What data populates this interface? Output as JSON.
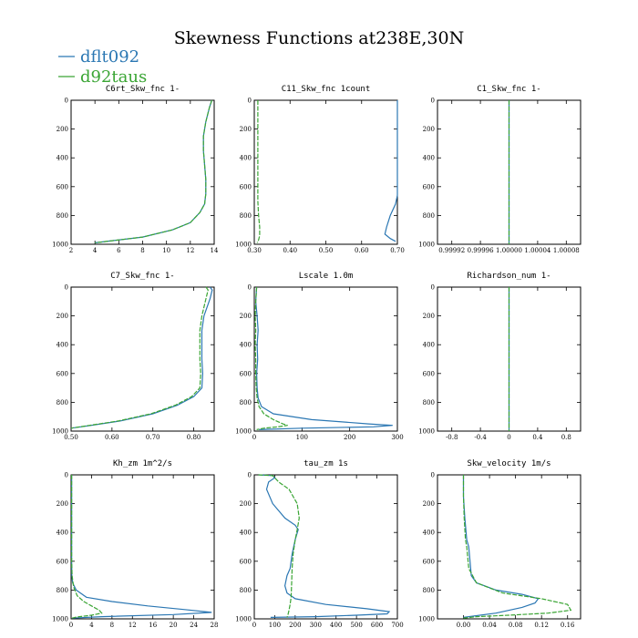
{
  "figure_title": "Skewness Functions at238E,30N",
  "legend": [
    {
      "label": "dflt092",
      "color": "#2b77b3"
    },
    {
      "label": "d92taus",
      "color": "#3aa534"
    }
  ],
  "chart_data": [
    {
      "type": "line",
      "title": "C6rt_Skw_fnc  1-",
      "xlim": [
        2,
        14
      ],
      "ylim": [
        0,
        1000
      ],
      "y_inverted": true,
      "xticks": [
        "2",
        "4",
        "6",
        "8",
        "10",
        "12",
        "14"
      ],
      "yticks": [
        "0",
        "200",
        "400",
        "600",
        "800",
        "1000"
      ],
      "series": [
        {
          "name": "dflt092",
          "x": [
            13.8,
            13.6,
            13.3,
            13.1,
            13.1,
            13.2,
            13.3,
            13.3,
            13.2,
            12.8,
            12.0,
            10.5,
            8.0,
            4.0
          ],
          "y": [
            0,
            50,
            150,
            250,
            350,
            450,
            550,
            650,
            720,
            780,
            850,
            900,
            950,
            990
          ]
        },
        {
          "name": "d92taus",
          "x": [
            13.8,
            13.6,
            13.3,
            13.1,
            13.1,
            13.2,
            13.3,
            13.3,
            13.2,
            12.8,
            12.0,
            10.5,
            8.0,
            4.0
          ],
          "y": [
            0,
            50,
            150,
            250,
            350,
            450,
            550,
            650,
            720,
            780,
            850,
            900,
            950,
            990
          ]
        }
      ]
    },
    {
      "type": "line",
      "title": "C11_Skw_fnc   1count",
      "xlim": [
        0.3,
        0.7
      ],
      "ylim": [
        0,
        1000
      ],
      "y_inverted": true,
      "xticks": [
        "0.30",
        "0.40",
        "0.50",
        "0.60",
        "0.70"
      ],
      "yticks": [
        "0",
        "200",
        "400",
        "600",
        "800",
        "1000"
      ],
      "series": [
        {
          "name": "dflt092",
          "x": [
            0.7,
            0.7,
            0.7,
            0.7,
            0.7,
            0.7,
            0.695,
            0.68,
            0.67,
            0.665,
            0.68,
            0.695
          ],
          "y": [
            0,
            150,
            300,
            450,
            600,
            660,
            720,
            800,
            880,
            930,
            960,
            980
          ]
        },
        {
          "name": "d92taus",
          "x": [
            0.31,
            0.31,
            0.31,
            0.31,
            0.31,
            0.31,
            0.312,
            0.315,
            0.315,
            0.312,
            0.308
          ],
          "y": [
            0,
            150,
            300,
            450,
            600,
            700,
            800,
            880,
            940,
            970,
            990
          ]
        }
      ]
    },
    {
      "type": "line",
      "title": "C1_Skw_fnc   1-",
      "xlim": [
        0.9999,
        1.0001
      ],
      "ylim": [
        0,
        1000
      ],
      "y_inverted": true,
      "xticks": [
        "0.99992",
        "0.99996",
        "1.00000",
        "1.00004",
        "1.00008"
      ],
      "yticks": [
        "0",
        "200",
        "400",
        "600",
        "800",
        "1000"
      ],
      "series": [
        {
          "name": "dflt092",
          "x": [
            1.0,
            1.0
          ],
          "y": [
            0,
            1000
          ]
        },
        {
          "name": "d92taus",
          "x": [
            1.0,
            1.0
          ],
          "y": [
            0,
            1000
          ]
        }
      ]
    },
    {
      "type": "line",
      "title": "C7_Skw_fnc   1-",
      "xlim": [
        0.5,
        0.85
      ],
      "ylim": [
        0,
        1000
      ],
      "y_inverted": true,
      "xticks": [
        "0.50",
        "0.60",
        "0.70",
        "0.80"
      ],
      "yticks": [
        "0",
        "200",
        "400",
        "600",
        "800",
        "1000"
      ],
      "series": [
        {
          "name": "dflt092",
          "x": [
            0.84,
            0.845,
            0.84,
            0.825,
            0.82,
            0.82,
            0.82,
            0.822,
            0.82,
            0.8,
            0.76,
            0.7,
            0.62,
            0.55,
            0.5
          ],
          "y": [
            0,
            20,
            80,
            200,
            300,
            400,
            500,
            600,
            700,
            760,
            820,
            880,
            930,
            960,
            980
          ]
        },
        {
          "name": "d92taus",
          "x": [
            0.83,
            0.835,
            0.83,
            0.82,
            0.815,
            0.815,
            0.815,
            0.817,
            0.815,
            0.795,
            0.755,
            0.695,
            0.615,
            0.545,
            0.5
          ],
          "y": [
            0,
            20,
            80,
            200,
            300,
            400,
            500,
            600,
            700,
            760,
            820,
            880,
            930,
            960,
            980
          ]
        }
      ]
    },
    {
      "type": "line",
      "title": "Lscale   1.0m",
      "xlim": [
        0,
        300
      ],
      "ylim": [
        0,
        1000
      ],
      "y_inverted": true,
      "xticks": [
        "0",
        "100",
        "200",
        "300"
      ],
      "yticks": [
        "0",
        "200",
        "400",
        "600",
        "800",
        "1000"
      ],
      "series": [
        {
          "name": "dflt092",
          "x": [
            5,
            3,
            6,
            8,
            6,
            7,
            5,
            6,
            8,
            15,
            40,
            120,
            240,
            290,
            250,
            100,
            10
          ],
          "y": [
            0,
            100,
            200,
            300,
            400,
            500,
            600,
            700,
            770,
            830,
            880,
            920,
            950,
            960,
            970,
            980,
            990
          ]
        },
        {
          "name": "d92taus",
          "x": [
            5,
            3,
            2,
            3,
            2,
            3,
            3,
            4,
            6,
            10,
            20,
            40,
            60,
            70,
            50,
            20,
            5
          ],
          "y": [
            0,
            100,
            200,
            300,
            400,
            500,
            600,
            700,
            770,
            830,
            880,
            920,
            950,
            960,
            970,
            980,
            990
          ]
        }
      ]
    },
    {
      "type": "line",
      "title": "Richardson_num   1-",
      "xlim": [
        -1,
        1
      ],
      "ylim": [
        0,
        1000
      ],
      "y_inverted": true,
      "xticks": [
        "-0.8",
        "-0.4",
        "0",
        "0.4",
        "0.8"
      ],
      "yticks": [
        "0",
        "200",
        "400",
        "600",
        "800",
        "1000"
      ],
      "series": [
        {
          "name": "dflt092",
          "x": [
            0,
            0
          ],
          "y": [
            0,
            1000
          ]
        },
        {
          "name": "d92taus",
          "x": [
            0,
            0
          ],
          "y": [
            0,
            1000
          ]
        }
      ]
    },
    {
      "type": "line",
      "title": "Kh_zm   1m^2/s",
      "xlim": [
        0,
        28
      ],
      "ylim": [
        0,
        1000
      ],
      "y_inverted": true,
      "xticks": [
        "0",
        "4",
        "8",
        "12",
        "16",
        "20",
        "24",
        "28"
      ],
      "yticks": [
        "0",
        "200",
        "400",
        "600",
        "800",
        "1000"
      ],
      "series": [
        {
          "name": "dflt092",
          "x": [
            0.1,
            0.1,
            0.1,
            0.1,
            0.15,
            0.3,
            1.0,
            3.0,
            8.0,
            15.0,
            22.0,
            27.5,
            20.0,
            6.0,
            0.2
          ],
          "y": [
            0,
            200,
            400,
            600,
            700,
            750,
            800,
            850,
            880,
            910,
            935,
            955,
            970,
            985,
            995
          ]
        },
        {
          "name": "d92taus",
          "x": [
            0.1,
            0.1,
            0.1,
            0.1,
            0.2,
            0.5,
            1.2,
            2.5,
            4.0,
            5.5,
            6.0,
            4.0,
            1.0,
            0.2
          ],
          "y": [
            0,
            200,
            400,
            600,
            700,
            780,
            840,
            880,
            910,
            940,
            960,
            975,
            988,
            995
          ]
        }
      ]
    },
    {
      "type": "line",
      "title": "tau_zm   1s",
      "xlim": [
        0,
        700
      ],
      "ylim": [
        0,
        1000
      ],
      "y_inverted": true,
      "xticks": [
        "0",
        "100",
        "200",
        "300",
        "400",
        "500",
        "600",
        "700"
      ],
      "yticks": [
        "0",
        "200",
        "400",
        "600",
        "800",
        "1000"
      ],
      "series": [
        {
          "name": "dflt092",
          "x": [
            20,
            90,
            100,
            70,
            60,
            90,
            150,
            200,
            215,
            200,
            185,
            175,
            160,
            150,
            160,
            200,
            350,
            550,
            660,
            650,
            500,
            300,
            80
          ],
          "y": [
            0,
            5,
            20,
            50,
            100,
            200,
            300,
            350,
            380,
            450,
            550,
            650,
            700,
            770,
            820,
            860,
            900,
            930,
            950,
            965,
            975,
            985,
            990
          ]
        },
        {
          "name": "d92taus",
          "x": [
            20,
            90,
            100,
            120,
            170,
            210,
            220,
            210,
            200,
            190,
            185,
            183,
            180,
            175,
            170,
            165,
            160
          ],
          "y": [
            0,
            5,
            20,
            50,
            100,
            200,
            300,
            380,
            450,
            550,
            650,
            750,
            850,
            900,
            940,
            970,
            990
          ]
        }
      ]
    },
    {
      "type": "line",
      "title": "Skw_velocity   1m/s",
      "xlim": [
        -0.04,
        0.18
      ],
      "ylim": [
        0,
        1000
      ],
      "y_inverted": true,
      "xticks": [
        "0.00",
        "0.04",
        "0.08",
        "0.12",
        "0.16"
      ],
      "yticks": [
        "0",
        "200",
        "400",
        "600",
        "800",
        "1000"
      ],
      "series": [
        {
          "name": "dflt092",
          "x": [
            0.0,
            0.0,
            0.002,
            0.005,
            0.008,
            0.01,
            0.012,
            0.02,
            0.05,
            0.09,
            0.115,
            0.11,
            0.09,
            0.05,
            0.0
          ],
          "y": [
            0,
            150,
            300,
            450,
            500,
            600,
            700,
            750,
            800,
            830,
            860,
            890,
            920,
            960,
            990
          ]
        },
        {
          "name": "d92taus",
          "x": [
            0.0,
            0.0,
            0.001,
            0.003,
            0.005,
            0.008,
            0.02,
            0.06,
            0.12,
            0.16,
            0.165,
            0.13,
            0.07,
            0.02,
            0.0
          ],
          "y": [
            0,
            150,
            300,
            450,
            500,
            650,
            750,
            820,
            860,
            900,
            940,
            960,
            975,
            985,
            995
          ]
        }
      ]
    }
  ]
}
